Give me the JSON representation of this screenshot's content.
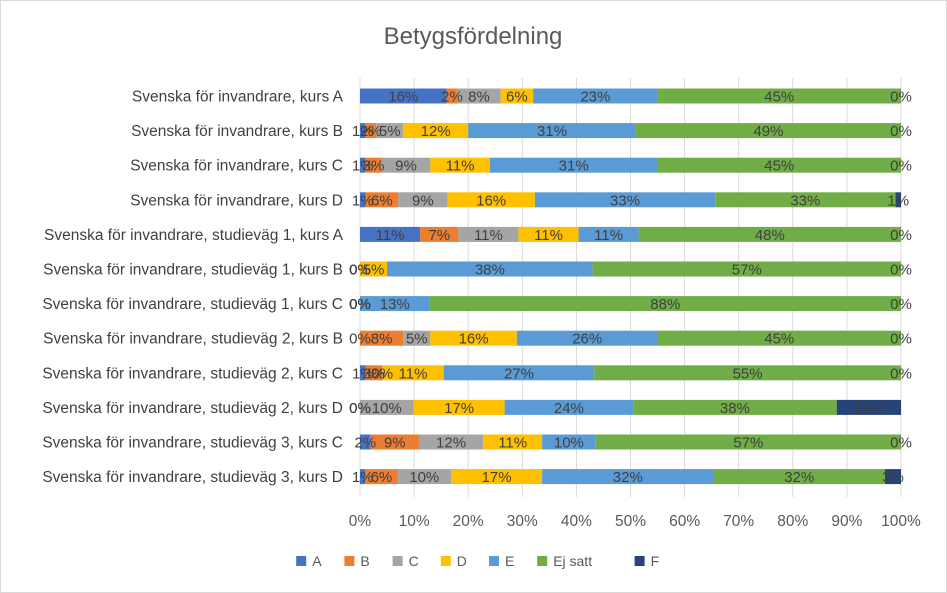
{
  "chart_data": {
    "type": "bar",
    "orientation": "horizontal",
    "stacked": "percent",
    "title": "Betygsfördelning",
    "xlabel": "",
    "ylabel": "",
    "xlim": [
      0,
      100
    ],
    "xticks": [
      "0%",
      "10%",
      "20%",
      "30%",
      "40%",
      "50%",
      "60%",
      "70%",
      "80%",
      "90%",
      "100%"
    ],
    "grid": true,
    "legend_position": "bottom",
    "categories": [
      "Svenska för invandrare, kurs A",
      "Svenska för invandrare, kurs B",
      "Svenska för invandrare, kurs C",
      "Svenska för invandrare, kurs D",
      "Svenska för invandrare, studieväg 1, kurs A",
      "Svenska för invandrare, studieväg 1, kurs B",
      "Svenska för invandrare, studieväg 1, kurs C",
      "Svenska för invandrare, studieväg 2, kurs B",
      "Svenska för invandrare, studieväg 2, kurs C",
      "Svenska för invandrare, studieväg 2, kurs D",
      "Svenska för invandrare, studieväg 3, kurs C",
      "Svenska för invandrare, studieväg 3, kurs D"
    ],
    "series": [
      {
        "name": "A",
        "color": "#4472C4",
        "values": [
          16,
          1,
          1,
          1,
          11,
          0,
          0,
          0,
          1,
          0,
          2,
          1
        ],
        "labels": [
          "16%",
          "1%",
          "1%",
          "1%",
          "11%",
          "0%",
          "0%",
          "0%",
          "1%",
          "0%",
          "2%",
          "1%"
        ]
      },
      {
        "name": "B",
        "color": "#ED7D31",
        "values": [
          2,
          2,
          3,
          6,
          7,
          0,
          0,
          8,
          3,
          0,
          9,
          6
        ],
        "labels": [
          "2%",
          "2%",
          "3%",
          "6%",
          "7%",
          "0%",
          "0%",
          "8%",
          "3%",
          "0%",
          "9%",
          "6%"
        ]
      },
      {
        "name": "C",
        "color": "#A5A5A5",
        "values": [
          8,
          5,
          9,
          9,
          11,
          0,
          0,
          5,
          0,
          10,
          12,
          10
        ],
        "labels": [
          "8%",
          "5%",
          "9%",
          "9%",
          "11%",
          "0%",
          "0%",
          "5%",
          "0%",
          "10%",
          "12%",
          "10%"
        ]
      },
      {
        "name": "D",
        "color": "#FFC000",
        "values": [
          6,
          12,
          11,
          16,
          11,
          5,
          0,
          16,
          11,
          17,
          11,
          17
        ],
        "labels": [
          "6%",
          "12%",
          "11%",
          "16%",
          "11%",
          "5%",
          "0%",
          "16%",
          "11%",
          "17%",
          "11%",
          "17%"
        ]
      },
      {
        "name": "E",
        "color": "#5B9BD5",
        "values": [
          23,
          31,
          31,
          33,
          11,
          38,
          13,
          26,
          27,
          24,
          10,
          32
        ],
        "labels": [
          "23%",
          "31%",
          "31%",
          "33%",
          "11%",
          "38%",
          "13%",
          "26%",
          "27%",
          "24%",
          "10%",
          "32%"
        ]
      },
      {
        "name": "Ej satt",
        "color": "#70AD47",
        "values": [
          45,
          49,
          45,
          33,
          48,
          57,
          88,
          45,
          55,
          38,
          57,
          32
        ],
        "labels": [
          "45%",
          "49%",
          "45%",
          "33%",
          "48%",
          "57%",
          "88%",
          "45%",
          "55%",
          "38%",
          "57%",
          "32%"
        ]
      },
      {
        "name": "F",
        "color": "#264478",
        "values": [
          0,
          0,
          0,
          1,
          0,
          0,
          0,
          0,
          0,
          12,
          0,
          3
        ],
        "labels": [
          "0%",
          "0%",
          "0%",
          "1%",
          "0%",
          "0%",
          "0%",
          "0%",
          "0%",
          "12%",
          "0%",
          "3%"
        ]
      }
    ]
  }
}
